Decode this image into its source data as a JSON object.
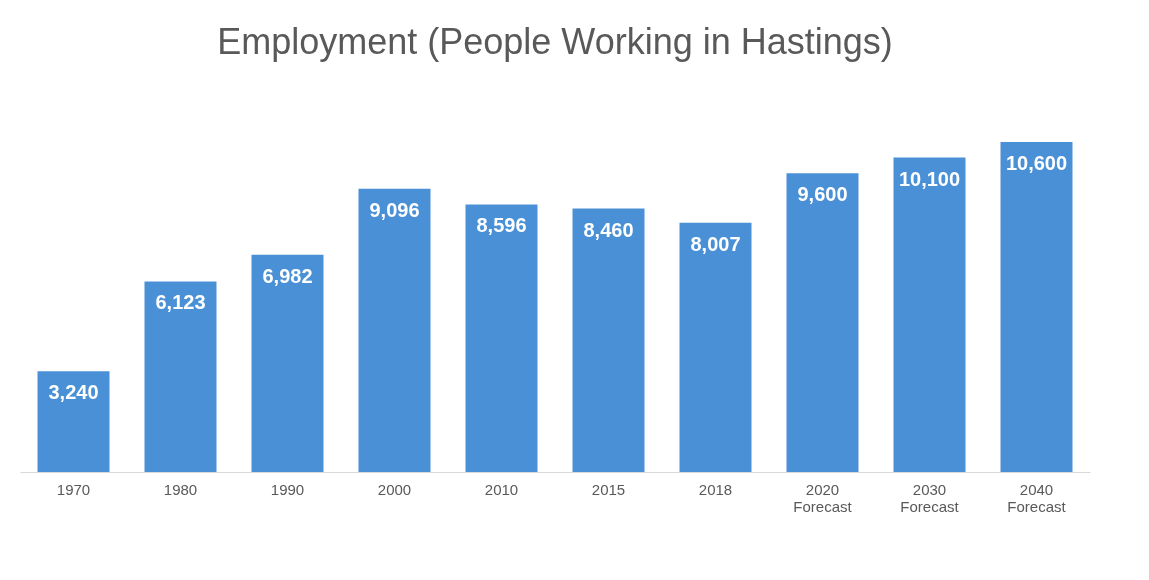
{
  "chart_data": {
    "type": "bar",
    "title": "Employment (People Working in Hastings)",
    "categories": [
      "1970",
      "1980",
      "1990",
      "2000",
      "2010",
      "2015",
      "2018",
      "2020 Forecast",
      "2030 Forecast",
      "2040 Forecast"
    ],
    "values": [
      3240,
      6123,
      6982,
      9096,
      8596,
      8460,
      8007,
      9600,
      10100,
      10600
    ],
    "value_labels": [
      "3,240",
      "6,123",
      "6,982",
      "9,096",
      "8,596",
      "8,460",
      "8,007",
      "9,600",
      "10,100",
      "10,600"
    ],
    "color": "#4a90d6",
    "grid": false
  }
}
